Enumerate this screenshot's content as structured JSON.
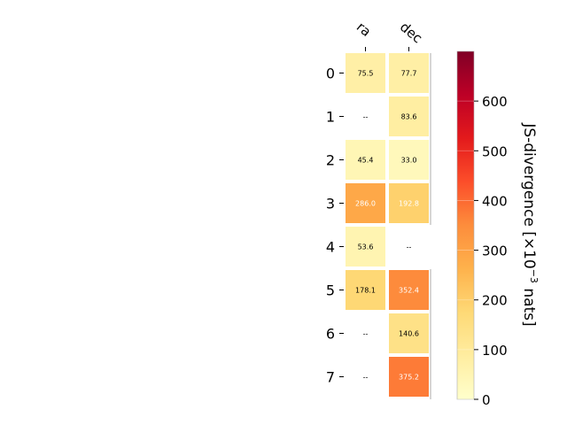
{
  "chart_data": {
    "type": "heatmap",
    "columns": [
      "ra",
      "dec"
    ],
    "rows": [
      "0",
      "1",
      "2",
      "3",
      "4",
      "5",
      "6",
      "7"
    ],
    "values": [
      [
        75.5,
        77.7
      ],
      [
        null,
        83.6
      ],
      [
        45.4,
        33.0
      ],
      [
        286.0,
        192.8
      ],
      [
        53.6,
        null
      ],
      [
        178.1,
        352.4
      ],
      [
        null,
        140.6
      ],
      [
        null,
        375.2
      ]
    ],
    "cell_labels": [
      [
        "75.5",
        "77.7"
      ],
      [
        "--",
        "83.6"
      ],
      [
        "45.4",
        "33.0"
      ],
      [
        "286.0",
        "192.8"
      ],
      [
        "53.6",
        "--"
      ],
      [
        "178.1",
        "352.4"
      ],
      [
        "--",
        "140.6"
      ],
      [
        "--",
        "375.2"
      ]
    ],
    "missing_label": "--",
    "colorbar": {
      "label_prefix": "JS-divergence [×10",
      "label_exponent": "−3",
      "label_suffix": " nats]",
      "range": [
        0,
        700
      ],
      "ticks": [
        0,
        100,
        200,
        300,
        400,
        500,
        600
      ],
      "colormap": "YlOrRd"
    },
    "colors": {
      "cmap_stops": [
        "#ffffcc",
        "#ffeda0",
        "#fed976",
        "#feb24c",
        "#fd8d3c",
        "#fc4e2a",
        "#e31a1c",
        "#bd0026",
        "#800026"
      ],
      "cell_border": "#ffffff",
      "text_dark": "#000000",
      "text_light": "#ffffff"
    }
  }
}
